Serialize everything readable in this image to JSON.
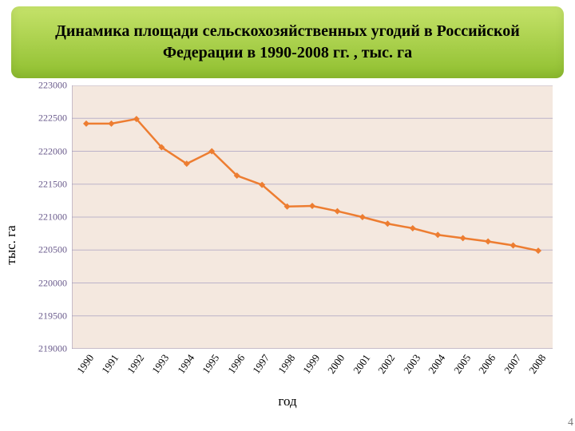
{
  "title": {
    "text": "Динамика площади сельскохозяйственных угодий в  Российской Федерации в 1990-2008 гг. , тыс. га",
    "fontsize": 20,
    "color": "#000000",
    "band_gradient_top": "#c5e26a",
    "band_gradient_bottom": "#8fbf2f"
  },
  "chart": {
    "type": "line",
    "xlabel": "год",
    "ylabel": "тыс. га",
    "label_fontsize": 17,
    "background_color": "#f4e8df",
    "grid_color": "#bcb3c9",
    "axis_color": "#9a8fb0",
    "ytick_color": "#6a5b8c",
    "series_color": "#ed7d31",
    "marker_color": "#ed7d31",
    "marker": "diamond",
    "marker_size": 8,
    "line_width": 2.5,
    "ylim": [
      219000,
      223000
    ],
    "ytick_step": 500,
    "yticks": [
      219000,
      219500,
      220000,
      220500,
      221000,
      221500,
      222000,
      222500,
      223000
    ],
    "categories": [
      "1990",
      "1991",
      "1992",
      "1993",
      "1994",
      "1995",
      "1996",
      "1997",
      "1998",
      "1999",
      "2000",
      "2001",
      "2002",
      "2003",
      "2004",
      "2005",
      "2006",
      "2007",
      "2008"
    ],
    "values": [
      222420,
      222420,
      222490,
      222060,
      221810,
      222000,
      221630,
      221490,
      221160,
      221170,
      221090,
      221000,
      220900,
      220830,
      220730,
      220680,
      220630,
      220570,
      220490
    ]
  },
  "page_number": "4"
}
